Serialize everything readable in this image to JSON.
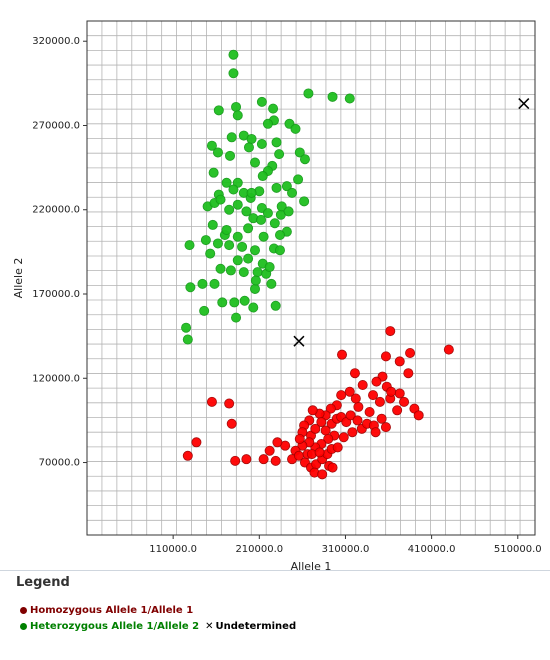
{
  "chart_data": {
    "type": "scatter",
    "xlabel": "Allele 1",
    "ylabel": "Allele 2",
    "x_ticks": [
      "110000.0",
      "210000.0",
      "310000.0",
      "410000.0",
      "510000.0"
    ],
    "y_ticks": [
      "70000.0",
      "120000.0",
      "170000.0",
      "220000.0",
      "270000.0",
      "320000.0"
    ],
    "xlim": [
      10000,
      530000
    ],
    "ylim": [
      27000,
      332000
    ],
    "grid": true,
    "series": [
      {
        "name": "Homozygous Allele 1/Allele 1",
        "color": "#ff0000",
        "points": [
          [
            362000,
            148000
          ],
          [
            430000,
            137000
          ],
          [
            306000,
            134000
          ],
          [
            385000,
            135000
          ],
          [
            373000,
            130000
          ],
          [
            357000,
            133000
          ],
          [
            383000,
            123000
          ],
          [
            353000,
            121000
          ],
          [
            321000,
            123000
          ],
          [
            346000,
            118000
          ],
          [
            330000,
            116000
          ],
          [
            358000,
            115000
          ],
          [
            373000,
            111000
          ],
          [
            342000,
            110000
          ],
          [
            350000,
            106000
          ],
          [
            362000,
            108000
          ],
          [
            363000,
            112000
          ],
          [
            378000,
            106000
          ],
          [
            390000,
            102000
          ],
          [
            370000,
            101000
          ],
          [
            395000,
            98000
          ],
          [
            338000,
            100000
          ],
          [
            325000,
            103000
          ],
          [
            322000,
            108000
          ],
          [
            315000,
            112000
          ],
          [
            305000,
            110000
          ],
          [
            300000,
            104000
          ],
          [
            293000,
            102000
          ],
          [
            287000,
            98000
          ],
          [
            280000,
            99000
          ],
          [
            272000,
            101000
          ],
          [
            268000,
            95000
          ],
          [
            262000,
            92000
          ],
          [
            260000,
            88000
          ],
          [
            270000,
            86000
          ],
          [
            275000,
            90000
          ],
          [
            282000,
            94000
          ],
          [
            287000,
            89000
          ],
          [
            294000,
            93000
          ],
          [
            300000,
            96000
          ],
          [
            305000,
            97000
          ],
          [
            311000,
            94000
          ],
          [
            316000,
            98000
          ],
          [
            324000,
            95000
          ],
          [
            329000,
            90000
          ],
          [
            335000,
            93000
          ],
          [
            343000,
            92000
          ],
          [
            352000,
            96000
          ],
          [
            357000,
            91000
          ],
          [
            345000,
            88000
          ],
          [
            318000,
            88000
          ],
          [
            308000,
            85000
          ],
          [
            297000,
            86000
          ],
          [
            290000,
            84000
          ],
          [
            282000,
            81000
          ],
          [
            275000,
            79000
          ],
          [
            268000,
            82000
          ],
          [
            260000,
            80000
          ],
          [
            252000,
            77000
          ],
          [
            248000,
            72000
          ],
          [
            256000,
            74000
          ],
          [
            263000,
            70000
          ],
          [
            270000,
            67000
          ],
          [
            276000,
            69000
          ],
          [
            283000,
            72000
          ],
          [
            289000,
            75000
          ],
          [
            294000,
            78000
          ],
          [
            301000,
            79000
          ],
          [
            257000,
            84000
          ],
          [
            266000,
            75000
          ],
          [
            271000,
            75000
          ],
          [
            274000,
            64000
          ],
          [
            283000,
            63000
          ],
          [
            291000,
            68000
          ],
          [
            295000,
            67000
          ],
          [
            280000,
            76000
          ],
          [
            240000,
            80000
          ],
          [
            231000,
            82000
          ],
          [
            222000,
            77000
          ],
          [
            215000,
            72000
          ],
          [
            229000,
            71000
          ],
          [
            195000,
            72000
          ],
          [
            182000,
            71000
          ],
          [
            178000,
            93000
          ],
          [
            155000,
            106000
          ],
          [
            137000,
            82000
          ],
          [
            127000,
            74000
          ],
          [
            175000,
            105000
          ]
        ]
      },
      {
        "name": "Heterozygous Allele 1/Allele 2",
        "color": "#1fbf1f",
        "points": [
          [
            180000,
            312000
          ],
          [
            180000,
            301000
          ],
          [
            315000,
            286000
          ],
          [
            267000,
            289000
          ],
          [
            295000,
            287000
          ],
          [
            213000,
            284000
          ],
          [
            226000,
            280000
          ],
          [
            183000,
            281000
          ],
          [
            163000,
            279000
          ],
          [
            185000,
            276000
          ],
          [
            227000,
            273000
          ],
          [
            220000,
            271000
          ],
          [
            245000,
            271000
          ],
          [
            252000,
            268000
          ],
          [
            192000,
            264000
          ],
          [
            178000,
            263000
          ],
          [
            201000,
            262000
          ],
          [
            213000,
            259000
          ],
          [
            155000,
            258000
          ],
          [
            162000,
            254000
          ],
          [
            176000,
            252000
          ],
          [
            198000,
            257000
          ],
          [
            230000,
            260000
          ],
          [
            233000,
            253000
          ],
          [
            257000,
            254000
          ],
          [
            263000,
            250000
          ],
          [
            225000,
            246000
          ],
          [
            220000,
            243000
          ],
          [
            205000,
            248000
          ],
          [
            214000,
            240000
          ],
          [
            157000,
            242000
          ],
          [
            172000,
            236000
          ],
          [
            185000,
            236000
          ],
          [
            180000,
            232000
          ],
          [
            163000,
            229000
          ],
          [
            192000,
            230000
          ],
          [
            200000,
            227000
          ],
          [
            210000,
            231000
          ],
          [
            230000,
            233000
          ],
          [
            242000,
            234000
          ],
          [
            248000,
            230000
          ],
          [
            255000,
            238000
          ],
          [
            262000,
            225000
          ],
          [
            150000,
            222000
          ],
          [
            158000,
            224000
          ],
          [
            165000,
            226000
          ],
          [
            175000,
            220000
          ],
          [
            185000,
            223000
          ],
          [
            195000,
            219000
          ],
          [
            203000,
            215000
          ],
          [
            213000,
            221000
          ],
          [
            220000,
            218000
          ],
          [
            228000,
            212000
          ],
          [
            235000,
            217000
          ],
          [
            242000,
            207000
          ],
          [
            156000,
            211000
          ],
          [
            148000,
            202000
          ],
          [
            170000,
            205000
          ],
          [
            162000,
            200000
          ],
          [
            185000,
            204000
          ],
          [
            190000,
            198000
          ],
          [
            197000,
            191000
          ],
          [
            205000,
            196000
          ],
          [
            214000,
            188000
          ],
          [
            208000,
            183000
          ],
          [
            218000,
            182000
          ],
          [
            224000,
            176000
          ],
          [
            192000,
            183000
          ],
          [
            177000,
            184000
          ],
          [
            165000,
            185000
          ],
          [
            158000,
            176000
          ],
          [
            144000,
            176000
          ],
          [
            153000,
            194000
          ],
          [
            129000,
            199000
          ],
          [
            227000,
            197000
          ],
          [
            234000,
            196000
          ],
          [
            215000,
            204000
          ],
          [
            236000,
            222000
          ],
          [
            197000,
            209000
          ],
          [
            175000,
            199000
          ],
          [
            185000,
            190000
          ],
          [
            193000,
            166000
          ],
          [
            205000,
            173000
          ],
          [
            181000,
            165000
          ],
          [
            167000,
            165000
          ],
          [
            146000,
            160000
          ],
          [
            229000,
            163000
          ],
          [
            203000,
            162000
          ],
          [
            183000,
            156000
          ],
          [
            125000,
            150000
          ],
          [
            127000,
            143000
          ],
          [
            130000,
            174000
          ],
          [
            222000,
            186000
          ],
          [
            206000,
            178000
          ],
          [
            172000,
            208000
          ],
          [
            201000,
            230000
          ],
          [
            212000,
            214000
          ],
          [
            234000,
            205000
          ],
          [
            244000,
            219000
          ]
        ]
      },
      {
        "name": "Undetermined",
        "color": "#000000",
        "marker": "x",
        "points": [
          [
            517000,
            283000
          ],
          [
            256000,
            142000
          ]
        ]
      }
    ]
  },
  "legend": {
    "title": "Legend",
    "items": [
      {
        "label": "Homozygous Allele 1/Allele 1",
        "color": "#800000"
      },
      {
        "label": "Heterozygous Allele 1/Allele 2",
        "color": "#008000"
      },
      {
        "label": "Undetermined",
        "color": "#000000",
        "symbol": "✕"
      }
    ]
  }
}
